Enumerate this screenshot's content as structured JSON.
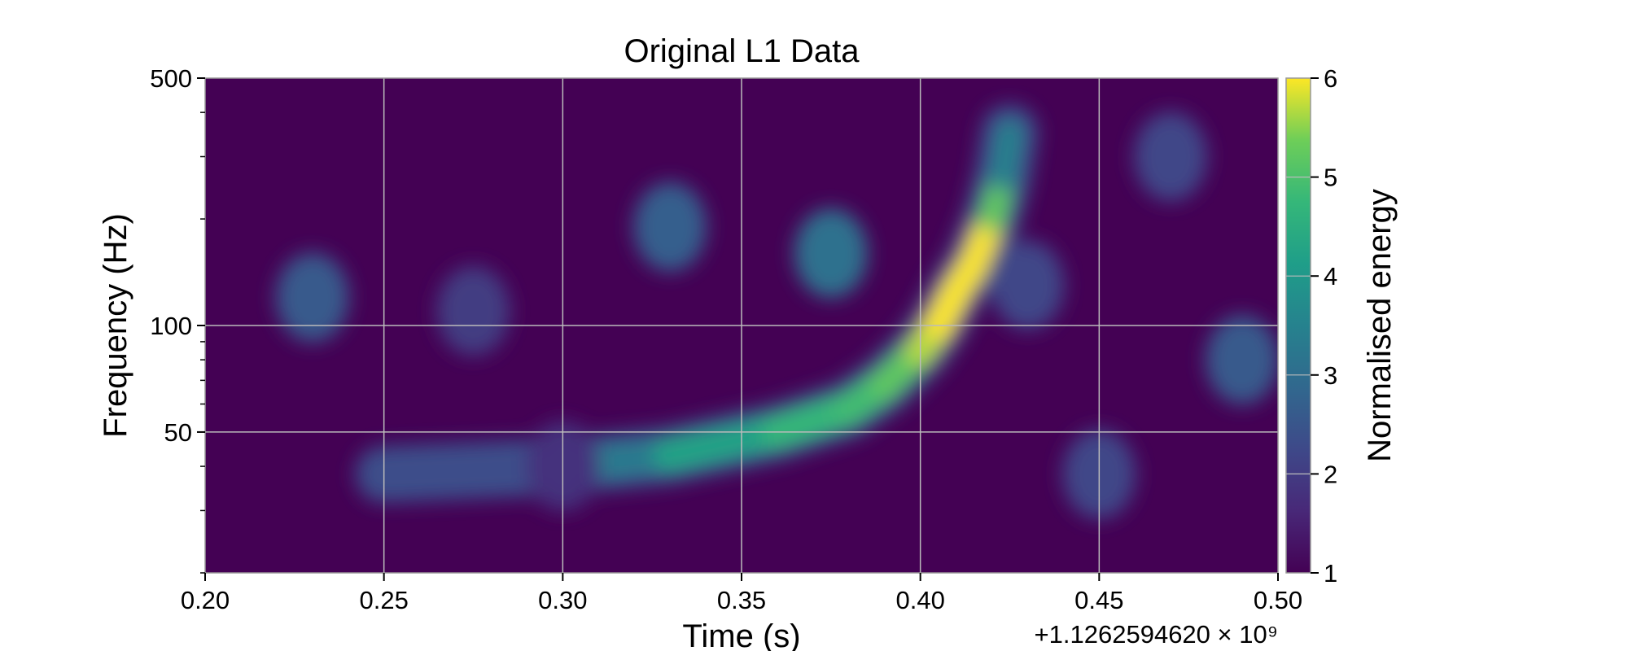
{
  "chart_data": {
    "type": "heatmap",
    "title": "Original L1 Data",
    "xlabel": "Time (s)",
    "ylabel": "Frequency (Hz)",
    "x_offset_text": "+1.1262594620 × 10⁹",
    "xlim": [
      0.2,
      0.5
    ],
    "ylim": [
      20,
      500
    ],
    "y_scale": "log",
    "x_ticks": [
      0.2,
      0.25,
      0.3,
      0.35,
      0.4,
      0.45,
      0.5
    ],
    "x_tick_labels": [
      "0.20",
      "0.25",
      "0.30",
      "0.35",
      "0.40",
      "0.45",
      "0.50"
    ],
    "y_ticks": [
      50,
      100,
      500
    ],
    "y_tick_labels": [
      "50",
      "100",
      "500"
    ],
    "grid": true,
    "colormap": "viridis",
    "colorbar": {
      "label": "Normalised energy",
      "range": [
        1,
        6
      ],
      "ticks": [
        1,
        2,
        3,
        4,
        5,
        6
      ],
      "tick_labels": [
        "1",
        "2",
        "3",
        "4",
        "5",
        "6"
      ]
    },
    "features": [
      {
        "name": "chirp-track",
        "points": [
          {
            "t": 0.25,
            "f": 38,
            "e": 1.9
          },
          {
            "t": 0.3,
            "f": 40,
            "e": 2.8
          },
          {
            "t": 0.33,
            "f": 43,
            "e": 3.8
          },
          {
            "t": 0.36,
            "f": 50,
            "e": 4.7
          },
          {
            "t": 0.38,
            "f": 58,
            "e": 4.8
          },
          {
            "t": 0.39,
            "f": 68,
            "e": 5.0
          },
          {
            "t": 0.4,
            "f": 85,
            "e": 5.4
          },
          {
            "t": 0.405,
            "f": 100,
            "e": 6.0
          },
          {
            "t": 0.41,
            "f": 125,
            "e": 6.0
          },
          {
            "t": 0.415,
            "f": 150,
            "e": 6.0
          },
          {
            "t": 0.42,
            "f": 200,
            "e": 6.0
          },
          {
            "t": 0.423,
            "f": 260,
            "e": 4.5
          },
          {
            "t": 0.425,
            "f": 350,
            "e": 2.5
          }
        ]
      },
      {
        "name": "background-blob",
        "t": 0.23,
        "f": 120,
        "e": 2.6
      },
      {
        "name": "background-blob",
        "t": 0.275,
        "f": 110,
        "e": 2.0
      },
      {
        "name": "background-blob",
        "t": 0.33,
        "f": 190,
        "e": 2.7
      },
      {
        "name": "background-blob",
        "t": 0.375,
        "f": 160,
        "e": 3.1
      },
      {
        "name": "background-blob",
        "t": 0.3,
        "f": 40,
        "e": 1.8
      },
      {
        "name": "background-blob",
        "t": 0.45,
        "f": 38,
        "e": 2.2
      },
      {
        "name": "background-blob",
        "t": 0.49,
        "f": 80,
        "e": 2.6
      },
      {
        "name": "background-blob",
        "t": 0.47,
        "f": 300,
        "e": 2.2
      },
      {
        "name": "background-blob",
        "t": 0.43,
        "f": 130,
        "e": 2.2
      }
    ]
  }
}
